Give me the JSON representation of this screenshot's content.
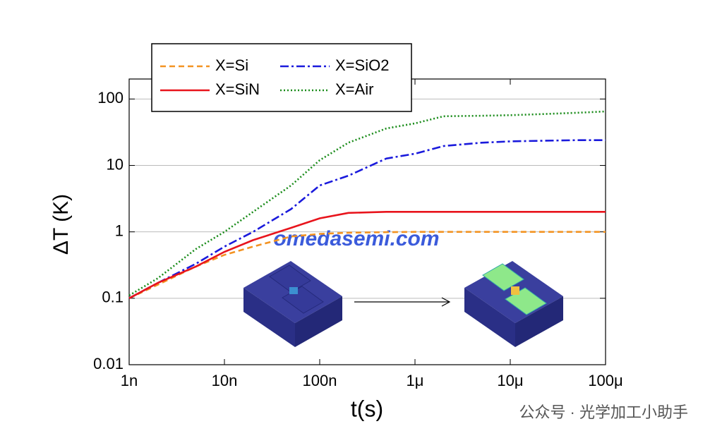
{
  "chart_data": {
    "type": "line",
    "x_label": "t(s)",
    "y_label": "ΔT (K)",
    "x": [
      1e-09,
      2e-09,
      5e-09,
      1e-08,
      2e-08,
      5e-08,
      1e-07,
      2e-07,
      5e-07,
      1e-06,
      2e-06,
      5e-06,
      1e-05,
      2e-05,
      5e-05,
      0.0001
    ],
    "series": [
      {
        "name": "X=Si",
        "color": "#f39322",
        "dash": "8,5",
        "values": [
          0.1,
          0.16,
          0.3,
          0.45,
          0.6,
          0.85,
          0.93,
          0.97,
          0.99,
          1.0,
          1.0,
          1.0,
          1.0,
          1.0,
          1.0,
          1.0
        ]
      },
      {
        "name": "X=SiO2",
        "color": "#1a1adc",
        "dash": "12,4,3,4",
        "values": [
          0.1,
          0.17,
          0.33,
          0.6,
          1.0,
          2.2,
          5.0,
          7.0,
          12.7,
          15,
          19.6,
          22,
          23,
          23.5,
          24,
          24
        ]
      },
      {
        "name": "X=SiN",
        "color": "#e8141c",
        "dash": "",
        "values": [
          0.1,
          0.17,
          0.3,
          0.5,
          0.75,
          1.15,
          1.6,
          1.93,
          2.0,
          2.0,
          2.0,
          2.0,
          2.0,
          2.0,
          2.0,
          2.0
        ]
      },
      {
        "name": "X=Air",
        "color": "#1a8c1a",
        "dash": "2,3",
        "values": [
          0.11,
          0.2,
          0.55,
          1.0,
          2.0,
          5.0,
          12,
          22,
          36,
          43,
          55,
          56,
          57,
          59,
          62,
          65
        ]
      }
    ],
    "log_x": true,
    "log_y": true,
    "xlim": [
      1e-09,
      0.0001
    ],
    "xticks": [
      {
        "value": 1e-09,
        "label": "1n"
      },
      {
        "value": 1e-08,
        "label": "10n"
      },
      {
        "value": 1e-07,
        "label": "100n"
      },
      {
        "value": 1e-06,
        "label": "1μ"
      },
      {
        "value": 1e-05,
        "label": "10μ"
      },
      {
        "value": 0.0001,
        "label": "100μ"
      }
    ],
    "ylim": [
      0.01,
      200
    ],
    "yticks": [
      0.01,
      0.1,
      1,
      10,
      100
    ],
    "grid": true,
    "legend": "top-left",
    "watermark": "omedasemi.com",
    "footer": "公众号 · 光学加工小助手"
  }
}
